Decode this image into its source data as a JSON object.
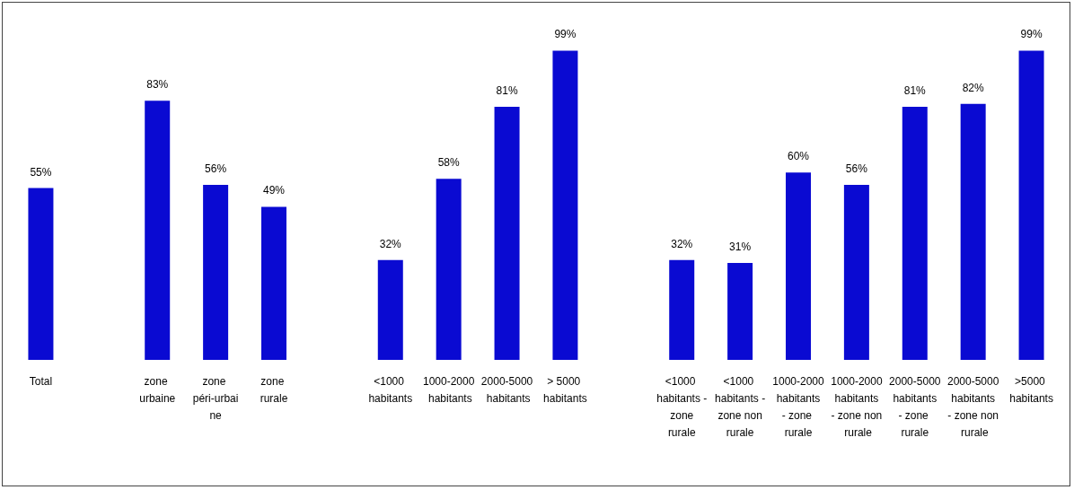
{
  "chart_data": {
    "type": "bar",
    "categories": [
      "Total",
      null,
      "zone urbaine",
      "zone péri-urbaine",
      "zone rurale",
      null,
      "<1000 habitants",
      "1000-2000 habitants",
      "2000-5000 habitants",
      "> 5000 habitants",
      null,
      "<1000 habitants - zone rurale",
      "<1000 habitants - zone non rurale",
      "1000-2000 habitants - zone rurale",
      "1000-2000 habitants - zone non rurale",
      "2000-5000 habitants - zone rurale",
      "2000-5000 habitants - zone non rurale",
      ">5000 habitants"
    ],
    "values": [
      55,
      null,
      83,
      56,
      49,
      null,
      32,
      58,
      81,
      99,
      null,
      32,
      31,
      60,
      56,
      81,
      82,
      99
    ],
    "value_labels": [
      "55%",
      null,
      "83%",
      "56%",
      "49%",
      null,
      "32%",
      "58%",
      "81%",
      "99%",
      null,
      "32%",
      "31%",
      "60%",
      "56%",
      "81%",
      "82%",
      "99%"
    ],
    "color": "#0a0ad2"
  }
}
